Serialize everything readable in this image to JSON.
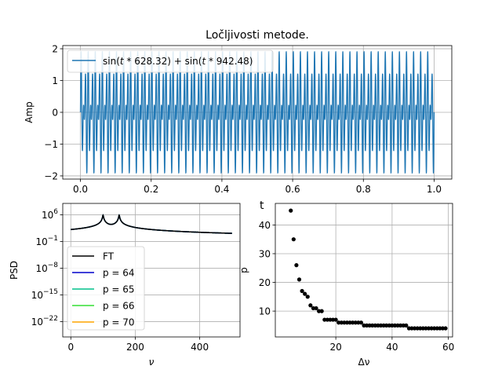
{
  "figure_title": "Ločljivosti metode.",
  "chart_data": [
    {
      "type": "line",
      "title": "Ločljivosti metode.",
      "xlabel": "",
      "ylabel": "Amp",
      "xlim": [
        -0.05,
        1.05
      ],
      "ylim": [
        -2.1,
        2.1
      ],
      "xticks": [
        0.0,
        0.2,
        0.4,
        0.6,
        0.8,
        1.0
      ],
      "xtick_labels": [
        "0.0",
        "0.2",
        "0.4",
        "0.6",
        "0.8",
        "1.0"
      ],
      "yticks": [
        2,
        1,
        0,
        -1,
        -2
      ],
      "ytick_labels": [
        "2",
        "1",
        "0",
        "−1",
        "−2"
      ],
      "grid": true,
      "legend_position": "top-left",
      "series": [
        {
          "name": "sin(t*628.32) + sin(t*942.48)",
          "label_parts": {
            "prefix": "sin(",
            "t": "t",
            "mid": " * 628.32) + sin(",
            "t2": "t",
            "suffix": " * 942.48)"
          },
          "color": "#1f77b4",
          "omega1": 628.32,
          "omega2": 942.48,
          "t_range": [
            0,
            1
          ]
        }
      ]
    },
    {
      "type": "line",
      "title": "",
      "xlabel": "ν",
      "ylabel": "PSD",
      "yscale": "log",
      "xlim": [
        -25,
        525
      ],
      "ylim_log10": [
        -26,
        9
      ],
      "xticks": [
        0,
        200,
        400
      ],
      "xtick_labels": [
        "0",
        "200",
        "400"
      ],
      "yticks_log10": [
        6,
        -1,
        -8,
        -15,
        -22
      ],
      "ytick_labels": [
        {
          "base": "10",
          "exp": "6"
        },
        {
          "base": "10",
          "exp": "−1"
        },
        {
          "base": "10",
          "exp": "−8"
        },
        {
          "base": "10",
          "exp": "−15"
        },
        {
          "base": "10",
          "exp": "−22"
        }
      ],
      "grid": true,
      "legend_position": "bottom-left",
      "peaks": [
        100,
        150
      ],
      "series": [
        {
          "name": "FT",
          "color": "#000000",
          "baseline_log10": -0.9
        },
        {
          "name": "p = 64",
          "color": "#0000cc",
          "baseline_log10": -2.8
        },
        {
          "name": "p = 65",
          "color": "#00c08a",
          "baseline_log10": -2.8
        },
        {
          "name": "p = 66",
          "color": "#33dd33",
          "baseline_log10": -2.8
        },
        {
          "name": "p = 70",
          "color": "#ffa500",
          "baseline_log10": -2.8
        }
      ]
    },
    {
      "type": "scatter",
      "title": "t",
      "xlabel": "Δν",
      "ylabel": "p",
      "xlim": [
        -1.5,
        61.5
      ],
      "ylim": [
        1.0,
        47.5
      ],
      "xticks": [
        20,
        40,
        60
      ],
      "xtick_labels": [
        "20",
        "40",
        "60"
      ],
      "yticks": [
        10,
        20,
        30,
        40
      ],
      "ytick_labels": [
        "10",
        "20",
        "30",
        "40"
      ],
      "grid": true,
      "series": [
        {
          "name": "",
          "color": "#000000",
          "points": [
            [
              4,
              45
            ],
            [
              5,
              35
            ],
            [
              6,
              26
            ],
            [
              7,
              21
            ],
            [
              8,
              17
            ],
            [
              9,
              16
            ],
            [
              10,
              15
            ],
            [
              11,
              12
            ],
            [
              12,
              11
            ],
            [
              13,
              11
            ],
            [
              14,
              10
            ],
            [
              15,
              10
            ],
            [
              16,
              7
            ],
            [
              17,
              7
            ],
            [
              18,
              7
            ],
            [
              19,
              7
            ],
            [
              20,
              7
            ],
            [
              21,
              6
            ],
            [
              22,
              6
            ],
            [
              23,
              6
            ],
            [
              24,
              6
            ],
            [
              25,
              6
            ],
            [
              26,
              6
            ],
            [
              27,
              6
            ],
            [
              28,
              6
            ],
            [
              29,
              6
            ],
            [
              30,
              5
            ],
            [
              31,
              5
            ],
            [
              32,
              5
            ],
            [
              33,
              5
            ],
            [
              34,
              5
            ],
            [
              35,
              5
            ],
            [
              36,
              5
            ],
            [
              37,
              5
            ],
            [
              38,
              5
            ],
            [
              39,
              5
            ],
            [
              40,
              5
            ],
            [
              41,
              5
            ],
            [
              42,
              5
            ],
            [
              43,
              5
            ],
            [
              44,
              5
            ],
            [
              45,
              5
            ],
            [
              46,
              4
            ],
            [
              47,
              4
            ],
            [
              48,
              4
            ],
            [
              49,
              4
            ],
            [
              50,
              4
            ],
            [
              51,
              4
            ],
            [
              52,
              4
            ],
            [
              53,
              4
            ],
            [
              54,
              4
            ],
            [
              55,
              4
            ],
            [
              56,
              4
            ],
            [
              57,
              4
            ],
            [
              58,
              4
            ],
            [
              59,
              4
            ]
          ]
        }
      ]
    }
  ]
}
